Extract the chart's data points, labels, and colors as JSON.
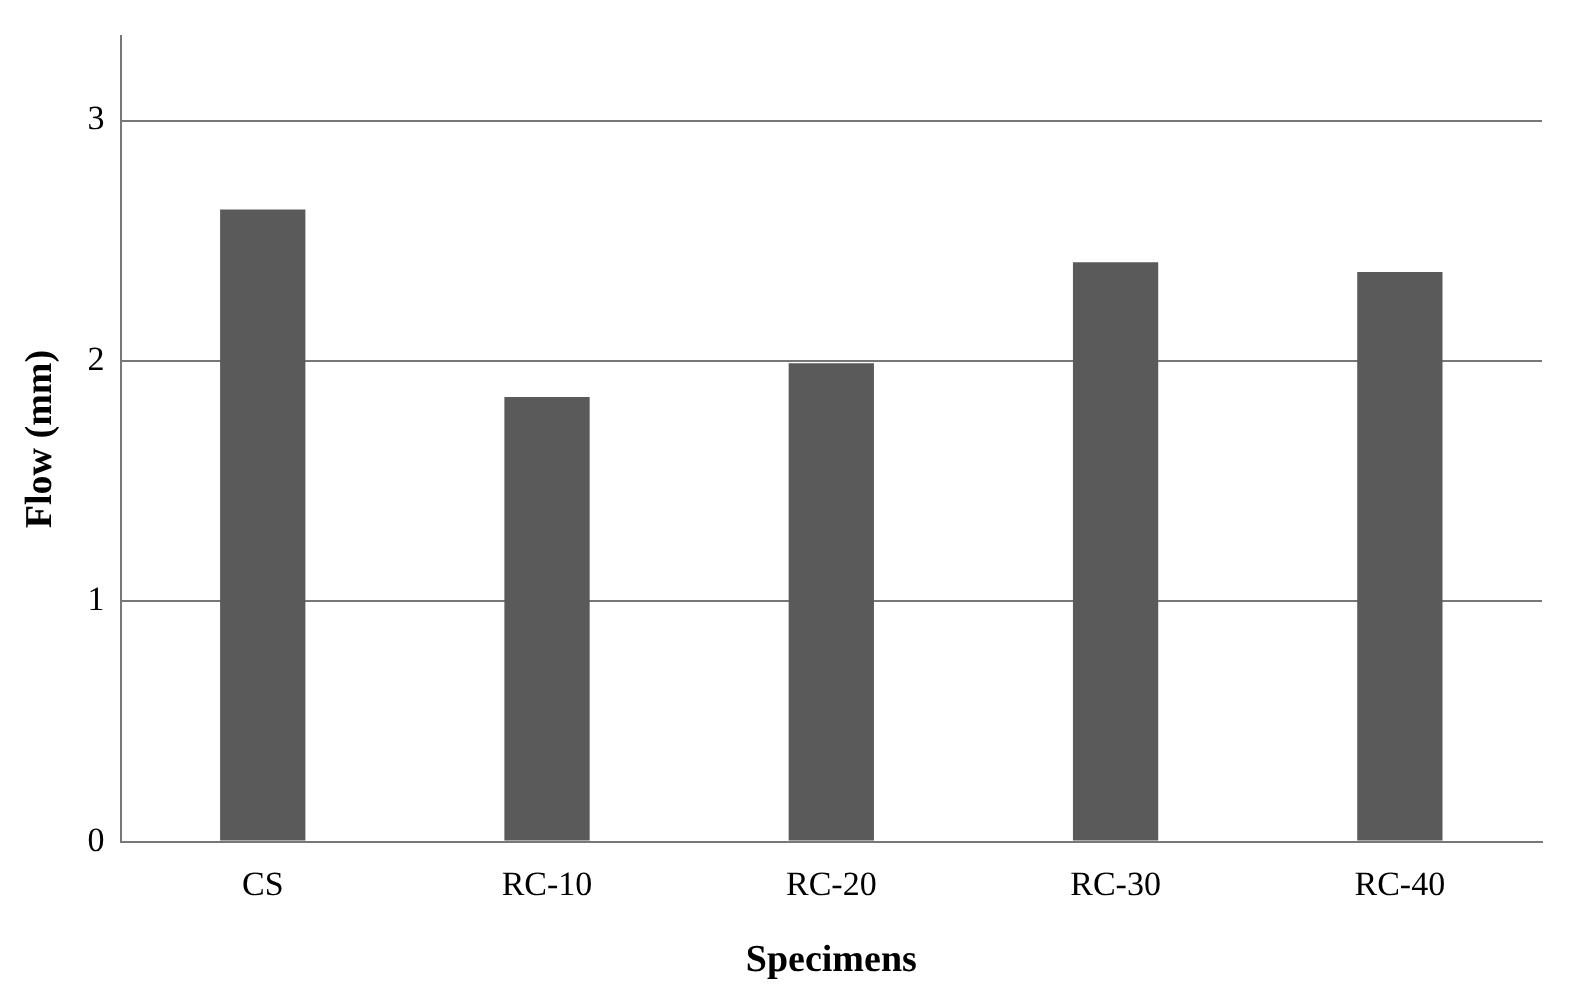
{
  "chart_data": {
    "type": "bar",
    "xlabel": "Specimens",
    "ylabel": "Flow (mm)",
    "categories": [
      "CS",
      "RC-10",
      "RC-20",
      "RC-30",
      "RC-40"
    ],
    "values": [
      2.63,
      1.85,
      1.99,
      2.41,
      2.37
    ],
    "color": "#5a5a5a",
    "ylim": [
      0,
      3.35
    ],
    "yticks": [
      0,
      1,
      2,
      3
    ],
    "grid": "y",
    "legend": false
  }
}
